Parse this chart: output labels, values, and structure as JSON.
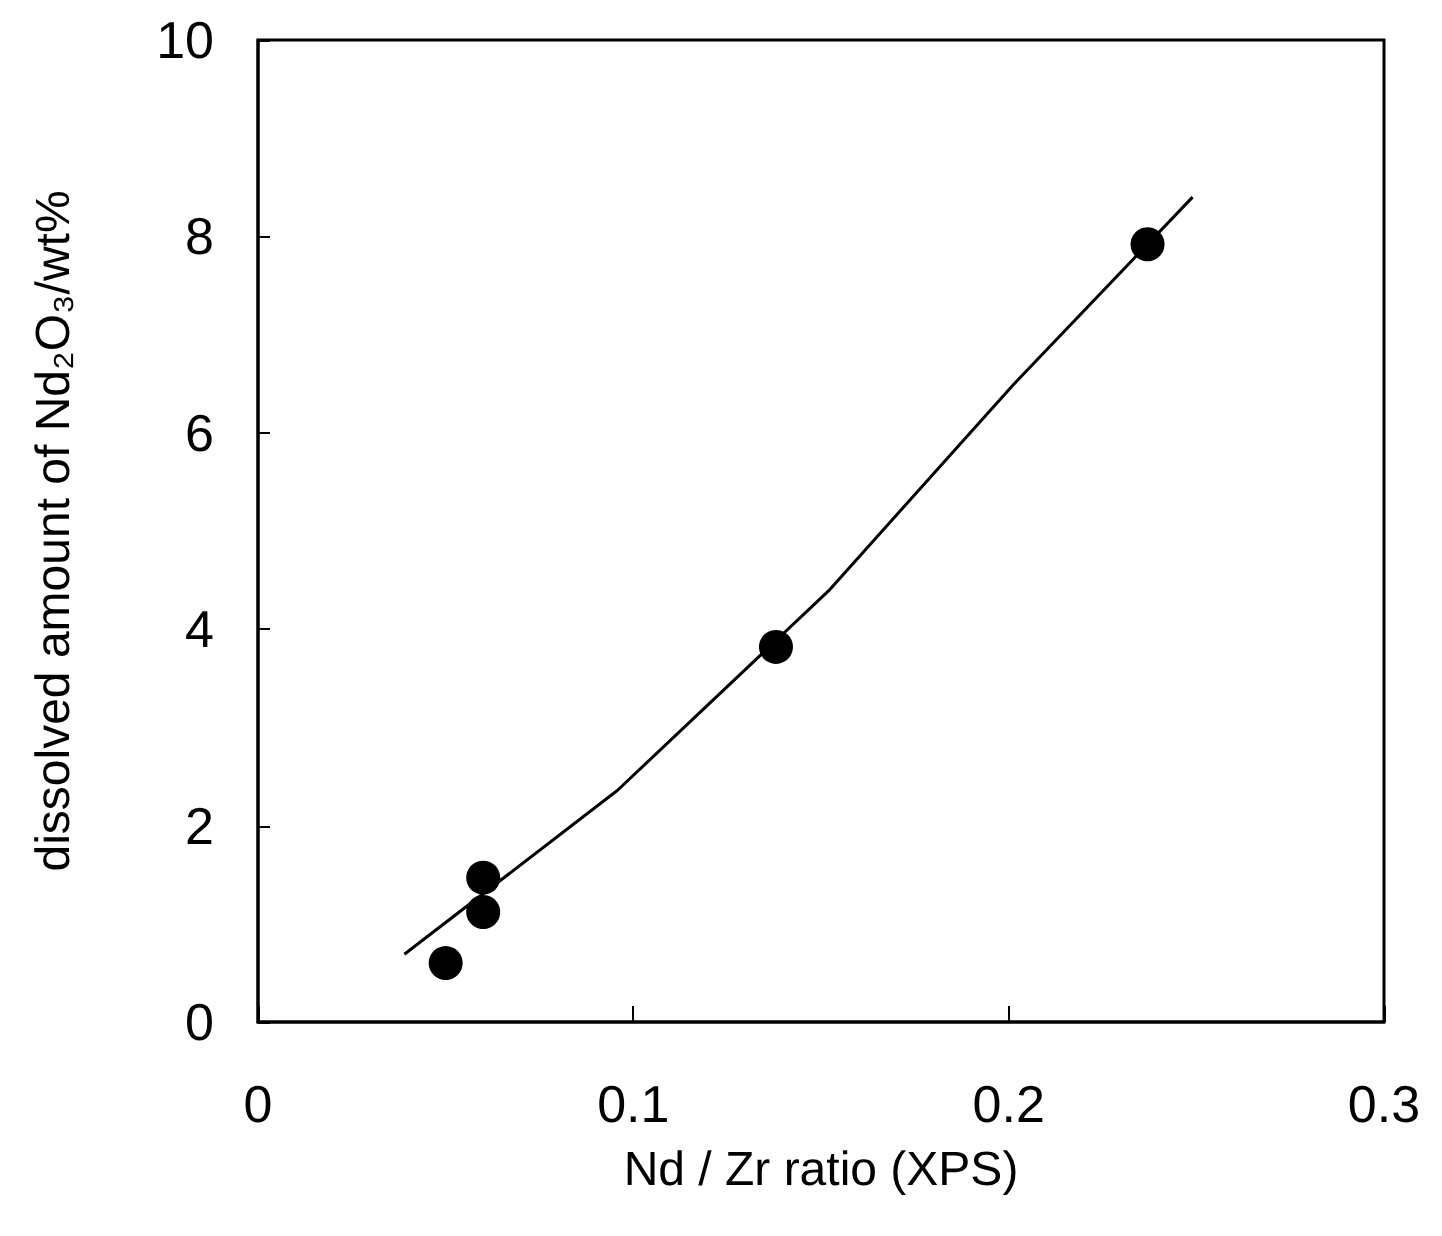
{
  "chart_data": {
    "type": "scatter",
    "xlabel": "Nd / Zr ratio (XPS)",
    "ylabel": "dissolved amount of Nd₂O₃/wt%",
    "xlim": [
      0,
      0.3
    ],
    "xticks": [
      0,
      0.1,
      0.2,
      0.3
    ],
    "ylim": [
      0,
      10
    ],
    "yticks": [
      0,
      2,
      4,
      6,
      8,
      10
    ],
    "grid": false,
    "marker": "circle",
    "series": [
      {
        "color": "#000000",
        "x": [
          0.05,
          0.06,
          0.06,
          0.138,
          0.237
        ],
        "values": [
          0.6,
          1.12,
          1.47,
          3.82,
          7.92
        ]
      },
      {
        "type": "line",
        "color": "#000000",
        "marker": "none",
        "line_style": "solid",
        "x": [
          0.039,
          0.0958,
          0.152,
          0.201,
          0.249
        ],
        "values": [
          0.69,
          2.36,
          4.39,
          6.48,
          8.4
        ]
      }
    ]
  }
}
